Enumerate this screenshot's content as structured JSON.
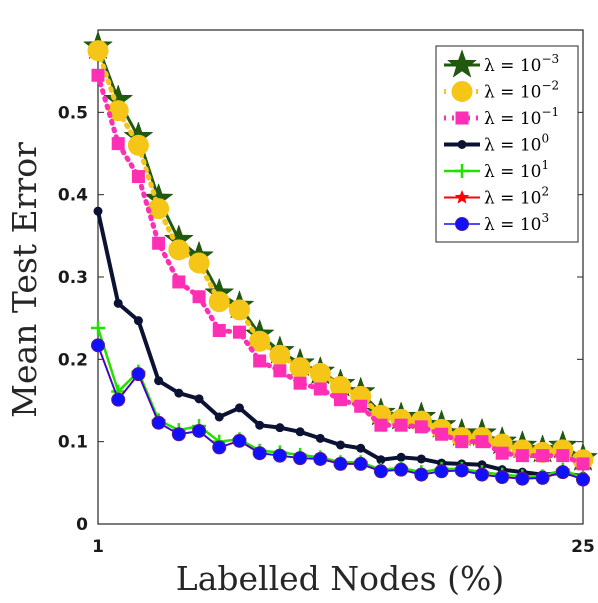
{
  "chart_data": {
    "type": "line",
    "xlabel": "Labelled Nodes (%)",
    "ylabel": "Mean Test Error",
    "xlim": [
      1,
      25
    ],
    "ylim": [
      0,
      0.6
    ],
    "x_ticks": [
      "1",
      "25"
    ],
    "y_ticks": [
      "0",
      "0.1",
      "0.2",
      "0.3",
      "0.4",
      "0.5"
    ],
    "grid": false,
    "legend_position": "top-right",
    "x": [
      1,
      2,
      3,
      4,
      5,
      6,
      7,
      8,
      9,
      10,
      11,
      12,
      13,
      14,
      15,
      16,
      17,
      18,
      19,
      20,
      21,
      22,
      23,
      24,
      25
    ],
    "series": [
      {
        "name": "λ = 10^-3",
        "color": "#1f5a0f",
        "marker": "star",
        "line": "solid",
        "values": [
          0.58,
          0.515,
          0.47,
          0.395,
          0.345,
          0.325,
          0.28,
          0.265,
          0.23,
          0.21,
          0.195,
          0.185,
          0.17,
          0.16,
          0.135,
          0.13,
          0.13,
          0.12,
          0.11,
          0.11,
          0.1,
          0.095,
          0.09,
          0.095,
          0.08
        ]
      },
      {
        "name": "λ = 10^-2",
        "color": "#f5c518",
        "marker": "circle",
        "line": "dotted",
        "values": [
          0.575,
          0.502,
          0.46,
          0.383,
          0.333,
          0.317,
          0.27,
          0.26,
          0.222,
          0.205,
          0.19,
          0.183,
          0.167,
          0.155,
          0.132,
          0.127,
          0.125,
          0.115,
          0.105,
          0.105,
          0.097,
          0.09,
          0.087,
          0.09,
          0.078
        ]
      },
      {
        "name": "λ = 10^-1",
        "color": "#ff2fb5",
        "marker": "square",
        "line": "dotted",
        "values": [
          0.545,
          0.462,
          0.422,
          0.341,
          0.294,
          0.276,
          0.235,
          0.233,
          0.198,
          0.186,
          0.171,
          0.164,
          0.151,
          0.143,
          0.12,
          0.12,
          0.118,
          0.109,
          0.1,
          0.1,
          0.086,
          0.083,
          0.083,
          0.083,
          0.073
        ]
      },
      {
        "name": "λ = 10^0",
        "color": "#0b1233",
        "marker": "dot",
        "line": "solid",
        "values": [
          0.38,
          0.268,
          0.247,
          0.174,
          0.159,
          0.152,
          0.13,
          0.141,
          0.12,
          0.117,
          0.112,
          0.104,
          0.096,
          0.092,
          0.078,
          0.081,
          0.079,
          0.074,
          0.073,
          0.072,
          0.066,
          0.063,
          0.06,
          0.062,
          0.058
        ]
      },
      {
        "name": "λ = 10^1",
        "color": "#22e000",
        "marker": "plus",
        "line": "solid",
        "values": [
          0.238,
          0.161,
          0.185,
          0.126,
          0.114,
          0.119,
          0.1,
          0.103,
          0.089,
          0.087,
          0.084,
          0.081,
          0.075,
          0.075,
          0.066,
          0.068,
          0.063,
          0.067,
          0.067,
          0.063,
          0.06,
          0.058,
          0.058,
          0.066,
          0.056
        ]
      },
      {
        "name": "λ = 10^2",
        "color": "#ff0000",
        "marker": "star",
        "line": "solid",
        "values": [
          0.217,
          0.151,
          0.182,
          0.123,
          0.109,
          0.113,
          0.093,
          0.101,
          0.086,
          0.083,
          0.08,
          0.079,
          0.073,
          0.073,
          0.064,
          0.066,
          0.06,
          0.064,
          0.065,
          0.06,
          0.057,
          0.055,
          0.056,
          0.063,
          0.054
        ]
      },
      {
        "name": "λ = 10^3",
        "color": "#1010ff",
        "marker": "circle",
        "line": "solid",
        "values": [
          0.217,
          0.151,
          0.182,
          0.123,
          0.109,
          0.113,
          0.093,
          0.101,
          0.086,
          0.083,
          0.08,
          0.079,
          0.073,
          0.073,
          0.064,
          0.066,
          0.06,
          0.064,
          0.065,
          0.06,
          0.057,
          0.055,
          0.056,
          0.063,
          0.054
        ]
      }
    ]
  },
  "legend": [
    {
      "text": "λ = 10",
      "exp": "−3"
    },
    {
      "text": "λ = 10",
      "exp": "−2"
    },
    {
      "text": "λ = 10",
      "exp": "−1"
    },
    {
      "text": "λ = 10",
      "exp": "0"
    },
    {
      "text": "λ = 10",
      "exp": "1"
    },
    {
      "text": "λ = 10",
      "exp": "2"
    },
    {
      "text": "λ = 10",
      "exp": "3"
    }
  ]
}
